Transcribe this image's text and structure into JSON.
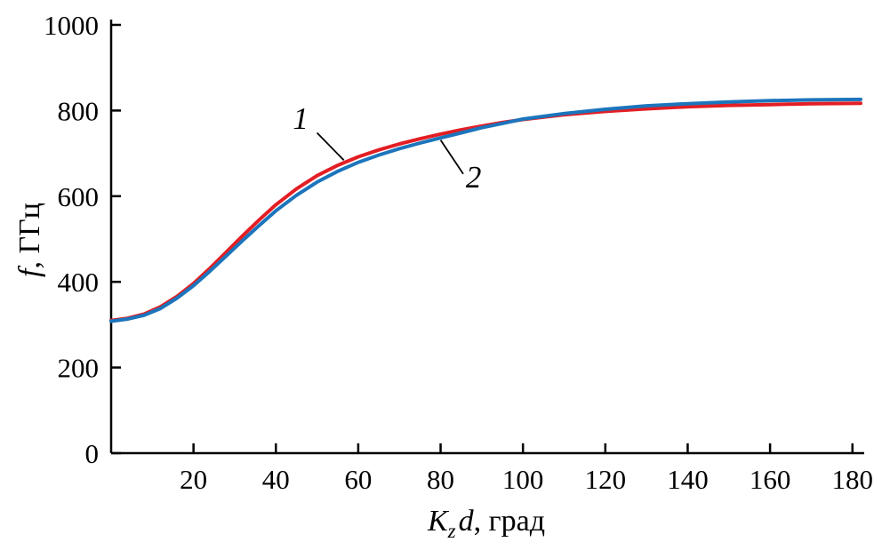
{
  "labels": {
    "y_italic": "f",
    "y_rest": ", ГГц",
    "x_K": "K",
    "x_sub": "z",
    "x_d": "d",
    "x_rest": ", град"
  },
  "chart_data": {
    "type": "line",
    "title": "",
    "xlabel": "K_z d, град",
    "ylabel": "f, ГГц",
    "xlim": [
      0,
      182
    ],
    "ylim": [
      0,
      1000
    ],
    "x_ticks": [
      20,
      40,
      60,
      80,
      100,
      120,
      140,
      160,
      180
    ],
    "y_ticks": [
      0,
      200,
      400,
      600,
      800,
      1000
    ],
    "grid": false,
    "legend": "none",
    "axis_color": "#000000",
    "x": [
      0,
      4,
      8,
      12,
      16,
      20,
      24,
      28,
      32,
      36,
      40,
      45,
      50,
      55,
      60,
      65,
      70,
      75,
      80,
      85,
      90,
      95,
      100,
      110,
      120,
      130,
      140,
      150,
      160,
      170,
      182
    ],
    "series": [
      {
        "name": "1",
        "color": "#e31e24",
        "values": [
          310,
          315,
          325,
          342,
          366,
          396,
          432,
          470,
          508,
          545,
          580,
          617,
          648,
          672,
          692,
          708,
          722,
          734,
          745,
          755,
          764,
          772,
          779,
          790,
          798,
          804,
          809,
          812,
          814,
          816,
          817
        ]
      },
      {
        "name": "2",
        "color": "#1c75bc",
        "values": [
          308,
          313,
          322,
          338,
          362,
          391,
          425,
          461,
          497,
          532,
          566,
          602,
          633,
          658,
          679,
          696,
          711,
          724,
          736,
          748,
          760,
          770,
          780,
          793,
          803,
          811,
          816,
          820,
          823,
          825,
          826
        ]
      }
    ],
    "annotations": [
      {
        "label": "1",
        "text_x": 46,
        "text_y": 782,
        "x1": 50,
        "y1": 748,
        "x2": 56.5,
        "y2": 684
      },
      {
        "label": "2",
        "text_x": 88,
        "text_y": 645,
        "x1": 80,
        "y1": 731,
        "x2": 85.5,
        "y2": 652
      }
    ]
  }
}
